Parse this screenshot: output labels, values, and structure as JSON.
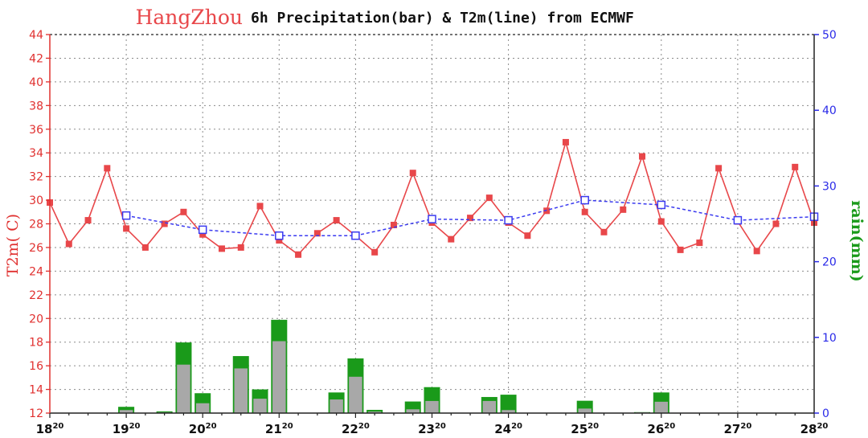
{
  "title": {
    "city": "HangZhou",
    "text": "6h Precipitation(bar) & T2m(line) from ECMWF"
  },
  "axes": {
    "left_label": "T2m(  C)",
    "right_label": "rain(mm)"
  },
  "colors": {
    "temperature_line": "#e8474a",
    "daily_temperature_line": "#3a3af0",
    "rain_bar_green": "#1a9a1a",
    "rain_bar_gray": "#a8a8a8",
    "left_axis": "#e0302f",
    "right_axis": "#2a2ae8"
  },
  "chart_data": {
    "type": "bar+line",
    "x_labels": [
      {
        "day": "18",
        "hour": "20"
      },
      {
        "day": "19",
        "hour": "20"
      },
      {
        "day": "20",
        "hour": "20"
      },
      {
        "day": "21",
        "hour": "20"
      },
      {
        "day": "22",
        "hour": "20"
      },
      {
        "day": "23",
        "hour": "20"
      },
      {
        "day": "24",
        "hour": "20"
      },
      {
        "day": "25",
        "hour": "20"
      },
      {
        "day": "26",
        "hour": "20"
      },
      {
        "day": "27",
        "hour": "20"
      },
      {
        "day": "28",
        "hour": "20"
      }
    ],
    "x_unit": "days since 18 20h (6h steps of 0.25)",
    "left_axis": {
      "label": "T2m(  C)",
      "min": 12,
      "max": 44,
      "step": 2
    },
    "right_axis": {
      "label": "rain(mm)",
      "min": 0,
      "max": 50,
      "ticks": [
        0,
        10,
        20,
        30,
        40,
        50
      ]
    },
    "temperature_6h": {
      "x": [
        0,
        0.25,
        0.5,
        0.75,
        1.0,
        1.25,
        1.5,
        1.75,
        2.0,
        2.25,
        2.5,
        2.75,
        3.0,
        3.25,
        3.5,
        3.75,
        4.0,
        4.25,
        4.5,
        4.75,
        5.0,
        5.25,
        5.5,
        5.75,
        6.0,
        6.25,
        6.5,
        6.75,
        7.0,
        7.25,
        7.5,
        7.75,
        8.0,
        8.25,
        8.5,
        8.75,
        9.0,
        9.25,
        9.5,
        9.75,
        10.0
      ],
      "y": [
        29.8,
        26.3,
        28.3,
        32.7,
        27.6,
        26.0,
        28.0,
        29.0,
        27.1,
        25.9,
        26.0,
        29.5,
        26.6,
        25.4,
        27.2,
        28.3,
        27.0,
        25.6,
        27.9,
        32.3,
        28.1,
        26.7,
        28.5,
        30.2,
        28.1,
        27.0,
        29.1,
        34.9,
        29.0,
        27.3,
        29.2,
        33.7,
        28.2,
        25.8,
        26.4,
        32.7,
        28.2,
        25.7,
        28.0,
        32.8,
        28.1
      ]
    },
    "temperature_daily": {
      "x": [
        1,
        2,
        3,
        4,
        5,
        6,
        7,
        8,
        9,
        10
      ],
      "y": [
        28.7,
        27.5,
        27.0,
        27.0,
        28.4,
        28.3,
        30.0,
        29.6,
        28.3,
        28.6
      ]
    },
    "rain_6h": {
      "x": [
        1,
        1.5,
        1.75,
        2.0,
        2.5,
        2.75,
        3.0,
        3.75,
        4.0,
        4.25,
        4.75,
        5.0,
        5.75,
        6.0,
        7.0,
        7.75,
        8.0
      ],
      "total": [
        0.8,
        0.2,
        9.3,
        2.6,
        7.5,
        3.1,
        12.3,
        2.7,
        7.2,
        0.4,
        1.5,
        3.4,
        2.1,
        2.4,
        1.6,
        0.1,
        2.7
      ],
      "convective": [
        0.4,
        0.1,
        6.4,
        1.3,
        5.9,
        1.9,
        9.5,
        1.8,
        4.8,
        0.2,
        0.5,
        1.6,
        1.6,
        0.4,
        0.6,
        0.1,
        1.5
      ]
    },
    "grid": true
  }
}
